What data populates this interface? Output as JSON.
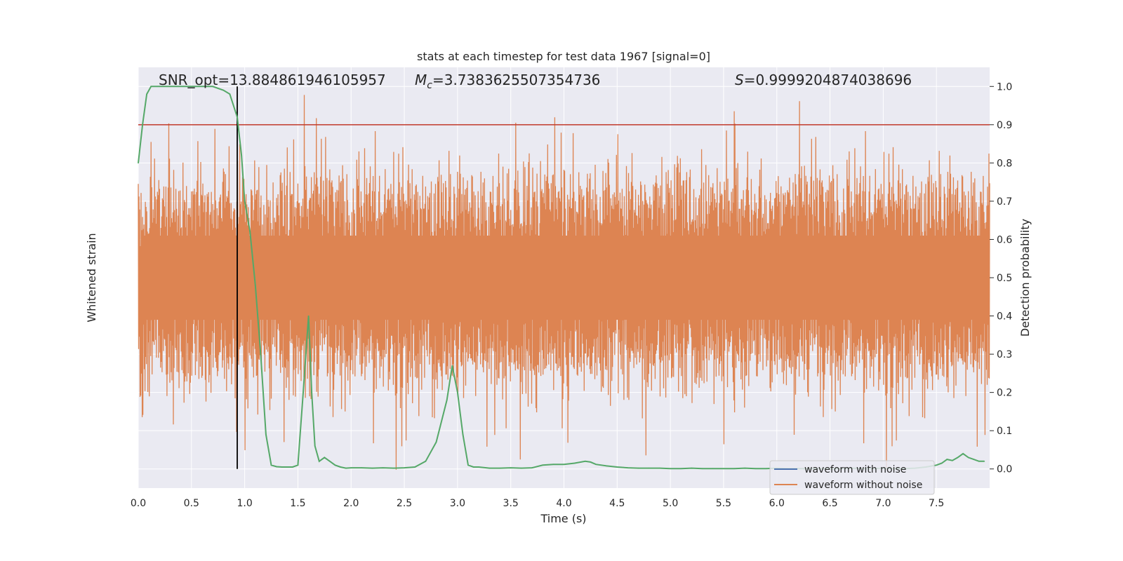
{
  "chart_data": {
    "type": "line",
    "title": "stats at each timestep for test data 1967 [signal=0]",
    "xlabel": "Time (s)",
    "ylabel_left": "Whitened strain",
    "ylabel_right": "Detection probability",
    "xlim": [
      0.0,
      8.0
    ],
    "ylim_right": [
      -0.05,
      1.05
    ],
    "x_ticks": [
      "0.0",
      "0.5",
      "1.0",
      "1.5",
      "2.0",
      "2.5",
      "3.0",
      "3.5",
      "4.0",
      "4.5",
      "5.0",
      "5.5",
      "6.0",
      "6.5",
      "7.0",
      "7.5"
    ],
    "x_tick_values": [
      0.0,
      0.5,
      1.0,
      1.5,
      2.0,
      2.5,
      3.0,
      3.5,
      4.0,
      4.5,
      5.0,
      5.5,
      6.0,
      6.5,
      7.0,
      7.5
    ],
    "y_ticks_right": [
      "0.0",
      "0.1",
      "0.2",
      "0.3",
      "0.4",
      "0.5",
      "0.6",
      "0.7",
      "0.8",
      "0.9",
      "1.0"
    ],
    "y_tick_values_right": [
      0.0,
      0.1,
      0.2,
      0.3,
      0.4,
      0.5,
      0.6,
      0.7,
      0.8,
      0.9,
      1.0
    ],
    "grid": true,
    "legend_position": "lower-right",
    "annotations": {
      "snr": "SNR_opt=13.884861946105957",
      "mc_symbol": "M",
      "mc_sub": "c",
      "mc_value": "=3.7383625507354736",
      "s_symbol": "S",
      "s_value": "=0.9999204874038696"
    },
    "threshold": {
      "y": 0.9,
      "color": "#c0392b"
    },
    "vertical_marker": {
      "x": 0.93,
      "color": "#000000"
    },
    "series": [
      {
        "name": "waveform with noise",
        "color": "#4c72b0"
      },
      {
        "name": "waveform without noise",
        "color": "#dd8452"
      },
      {
        "color": "#55a868",
        "x": [
          0.0,
          0.04,
          0.08,
          0.12,
          0.2,
          0.3,
          0.4,
          0.5,
          0.6,
          0.7,
          0.8,
          0.86,
          0.93,
          0.97,
          1.0,
          1.05,
          1.1,
          1.15,
          1.2,
          1.25,
          1.3,
          1.35,
          1.4,
          1.45,
          1.5,
          1.55,
          1.6,
          1.63,
          1.66,
          1.7,
          1.75,
          1.8,
          1.85,
          1.9,
          1.95,
          2.0,
          2.1,
          2.2,
          2.3,
          2.4,
          2.5,
          2.6,
          2.7,
          2.8,
          2.9,
          2.95,
          3.0,
          3.05,
          3.1,
          3.15,
          3.2,
          3.3,
          3.4,
          3.5,
          3.6,
          3.7,
          3.8,
          3.9,
          4.0,
          4.1,
          4.2,
          4.25,
          4.3,
          4.4,
          4.5,
          4.6,
          4.7,
          4.8,
          4.9,
          5.0,
          5.1,
          5.2,
          5.3,
          5.4,
          5.5,
          5.6,
          5.7,
          5.8,
          5.9,
          6.0,
          6.1,
          6.2,
          6.3,
          6.4,
          6.5,
          6.6,
          6.7,
          6.8,
          6.9,
          7.0,
          7.1,
          7.2,
          7.3,
          7.4,
          7.5,
          7.55,
          7.6,
          7.65,
          7.7,
          7.75,
          7.8,
          7.85,
          7.9,
          7.95
        ],
        "y": [
          0.8,
          0.9,
          0.98,
          1.0,
          1.0,
          1.0,
          1.0,
          1.0,
          1.0,
          1.0,
          0.99,
          0.98,
          0.92,
          0.82,
          0.7,
          0.62,
          0.48,
          0.3,
          0.09,
          0.01,
          0.006,
          0.005,
          0.005,
          0.005,
          0.01,
          0.2,
          0.4,
          0.2,
          0.06,
          0.02,
          0.03,
          0.02,
          0.01,
          0.005,
          0.002,
          0.003,
          0.003,
          0.002,
          0.003,
          0.002,
          0.003,
          0.005,
          0.02,
          0.07,
          0.18,
          0.27,
          0.2,
          0.09,
          0.01,
          0.005,
          0.005,
          0.002,
          0.002,
          0.003,
          0.002,
          0.003,
          0.01,
          0.012,
          0.012,
          0.015,
          0.02,
          0.018,
          0.012,
          0.008,
          0.005,
          0.003,
          0.002,
          0.002,
          0.002,
          0.001,
          0.001,
          0.002,
          0.001,
          0.001,
          0.001,
          0.001,
          0.002,
          0.001,
          0.001,
          0.002,
          0.001,
          0.001,
          0.001,
          0.001,
          0.001,
          0.001,
          0.002,
          0.001,
          0.001,
          0.002,
          0.001,
          0.001,
          0.002,
          0.005,
          0.01,
          0.015,
          0.025,
          0.022,
          0.03,
          0.04,
          0.03,
          0.025,
          0.02,
          0.02
        ]
      }
    ]
  }
}
